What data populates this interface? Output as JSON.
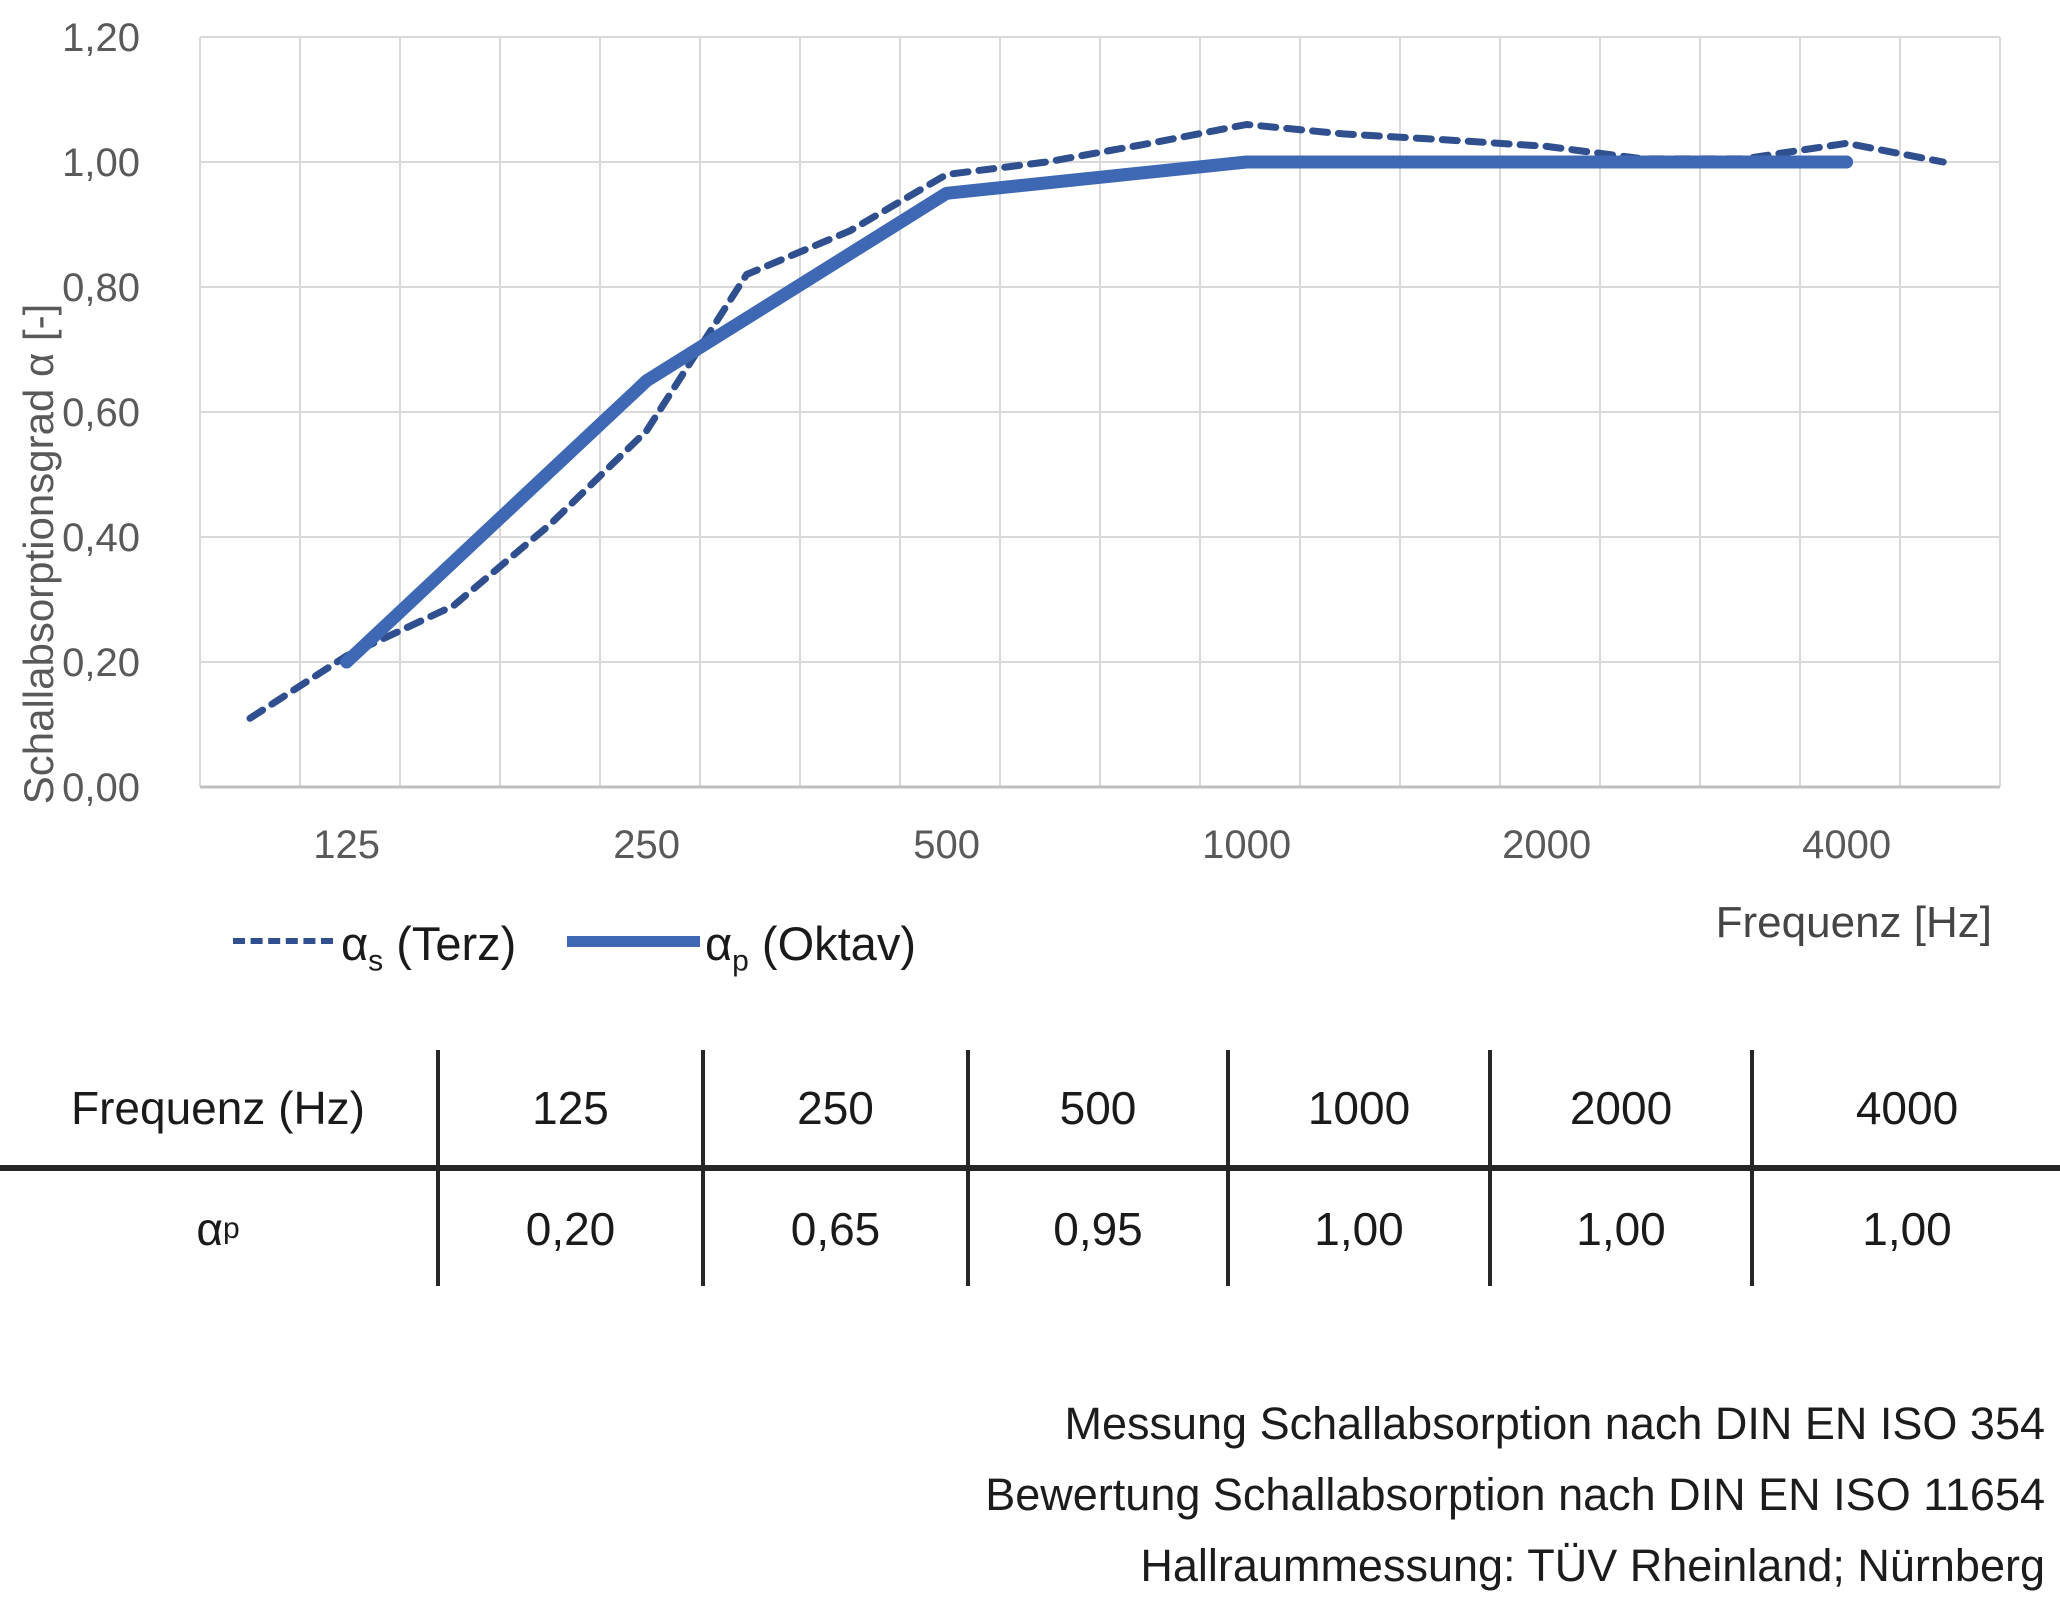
{
  "chart_data": {
    "type": "line",
    "title": "",
    "xlabel": "Frequenz [Hz]",
    "ylabel": "Schallabsorptionsgrad α [-]",
    "x_scale": "logarithmic (third-octave bands, 100–5000 Hz)",
    "ylim": [
      0,
      1.2
    ],
    "grid": true,
    "legend_position": "bottom-left",
    "y_ticks": [
      {
        "v": 0.0,
        "label": "0,00"
      },
      {
        "v": 0.2,
        "label": "0,20"
      },
      {
        "v": 0.4,
        "label": "0,40"
      },
      {
        "v": 0.6,
        "label": "0,60"
      },
      {
        "v": 0.8,
        "label": "0,80"
      },
      {
        "v": 1.0,
        "label": "1,00"
      },
      {
        "v": 1.2,
        "label": "1,20"
      }
    ],
    "x_ticks": [
      {
        "f": 125,
        "label": "125"
      },
      {
        "f": 250,
        "label": "250"
      },
      {
        "f": 500,
        "label": "500"
      },
      {
        "f": 1000,
        "label": "1000"
      },
      {
        "f": 2000,
        "label": "2000"
      },
      {
        "f": 4000,
        "label": "4000"
      }
    ],
    "series": [
      {
        "name": "αs (Terz)",
        "legend_symbol": "α",
        "legend_sub": "s",
        "legend_rest": " (Terz)",
        "style": "dashed",
        "color": "#2F4F8F",
        "x": [
          100,
          125,
          160,
          200,
          250,
          315,
          400,
          500,
          630,
          800,
          1000,
          1250,
          1600,
          2000,
          2500,
          3150,
          4000,
          5000
        ],
        "values": [
          0.11,
          0.21,
          0.29,
          0.42,
          0.57,
          0.82,
          0.89,
          0.98,
          1.0,
          1.03,
          1.06,
          1.045,
          1.035,
          1.025,
          1.005,
          1.005,
          1.03,
          1.0
        ]
      },
      {
        "name": "αp (Oktav)",
        "legend_symbol": "α",
        "legend_sub": "p",
        "legend_rest": " (Oktav)",
        "style": "solid",
        "color": "#3E68B4",
        "x": [
          125,
          250,
          500,
          1000,
          2000,
          4000
        ],
        "values": [
          0.2,
          0.65,
          0.95,
          1.0,
          1.0,
          1.0
        ]
      }
    ],
    "colors": {
      "gridline": "#D9D9D9",
      "axis_line": "#BFBFBF",
      "tick_text": "#595959"
    }
  },
  "table": {
    "header_label": "Frequenz (Hz)",
    "row_label_symbol": "α",
    "row_label_sub": "p",
    "columns": [
      "125",
      "250",
      "500",
      "1000",
      "2000",
      "4000"
    ],
    "values": [
      "0,20",
      "0,65",
      "0,95",
      "1,00",
      "1,00",
      "1,00"
    ]
  },
  "footer": {
    "lines": [
      "Messung Schallabsorption nach DIN EN ISO 354",
      "Bewertung Schallabsorption nach DIN EN ISO 11654",
      "Hallraummessung: TÜV Rheinland; Nürnberg"
    ]
  }
}
